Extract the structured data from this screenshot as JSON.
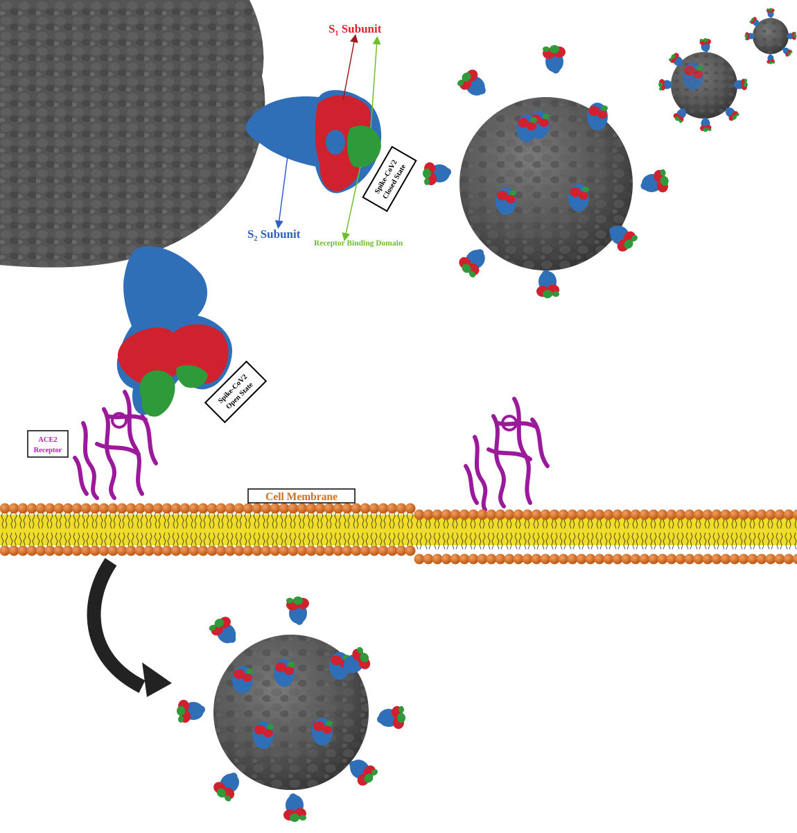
{
  "labels": {
    "s1_prefix": "S",
    "s1_sub": "1",
    "s1_suffix": " Subunit",
    "s2_prefix": "S",
    "s2_sub": "2",
    "s2_suffix": " Subunit",
    "rbd": "Receptor Binding Domain",
    "closed_line1": "Spike-CoV2",
    "closed_line2": "Closed State",
    "open_line1": "Spike-CoV2",
    "open_line2": "Open State",
    "ace2_line1": "ACE2",
    "ace2_line2": "Receptor",
    "membrane": "Cell Membrane"
  },
  "colors": {
    "virus_body": "#555555",
    "s1": "#d0212e",
    "s2": "#2f6fb8",
    "rbd": "#2f9a3a",
    "ace2": "#9b1a9b",
    "head_group": "#e0701c",
    "tail": "#f0dc2a",
    "s1_text": "#e0202a",
    "s2_text": "#2f5fc0",
    "rbd_text": "#6cbf2a",
    "ace2_text": "#b020b0",
    "membrane_text": "#d0701c",
    "arrow": "#222222"
  }
}
